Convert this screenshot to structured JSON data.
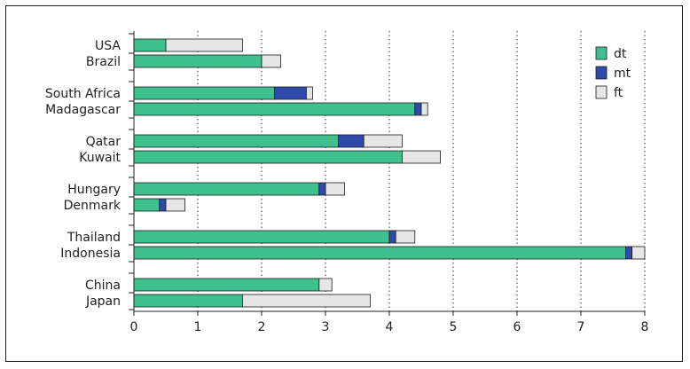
{
  "chart_data": {
    "type": "bar",
    "orientation": "horizontal",
    "stacked": true,
    "categories": [
      "USA",
      "Brazil",
      "South Africa",
      "Madagascar",
      "Qatar",
      "Kuwait",
      "Hungary",
      "Denmark",
      "Thailand",
      "Indonesia",
      "China",
      "Japan"
    ],
    "series": [
      {
        "name": "dt",
        "color": "#3fc08f",
        "values": [
          0.5,
          2.0,
          2.2,
          4.4,
          3.2,
          4.2,
          2.9,
          0.4,
          4.0,
          7.7,
          2.9,
          1.7
        ]
      },
      {
        "name": "mt",
        "color": "#2f4aa8",
        "values": [
          0.0,
          0.0,
          0.5,
          0.1,
          0.4,
          0.0,
          0.1,
          0.1,
          0.1,
          0.1,
          0.0,
          0.0
        ]
      },
      {
        "name": "ft",
        "color": "#e6e6e6",
        "values": [
          1.2,
          0.3,
          0.1,
          0.1,
          0.6,
          0.6,
          0.3,
          0.3,
          0.3,
          0.2,
          0.2,
          2.0
        ]
      }
    ],
    "xticks": [
      "0",
      "1",
      "2",
      "3",
      "4",
      "5",
      "6",
      "7",
      "8"
    ],
    "xlim": [
      0,
      8
    ],
    "grid": "vertical dotted",
    "legend": "top-right"
  }
}
